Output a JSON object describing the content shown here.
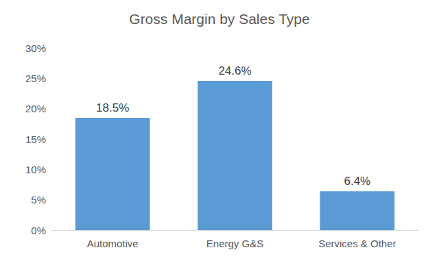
{
  "chart_data": {
    "type": "bar",
    "title": "Gross Margin by Sales Type",
    "categories": [
      "Automotive",
      "Energy G&S",
      "Services & Other"
    ],
    "values": [
      18.5,
      24.6,
      6.4
    ],
    "value_labels": [
      "18.5%",
      "24.6%",
      "6.4%"
    ],
    "color": "#5b9bd5",
    "ylim": [
      0,
      30
    ],
    "yticks": [
      {
        "value": 0,
        "label": "0%"
      },
      {
        "value": 5,
        "label": "5%"
      },
      {
        "value": 10,
        "label": "10%"
      },
      {
        "value": 15,
        "label": "15%"
      },
      {
        "value": 20,
        "label": "20%"
      },
      {
        "value": 25,
        "label": "25%"
      },
      {
        "value": 30,
        "label": "30%"
      }
    ],
    "grid": false,
    "data_labels": true
  }
}
